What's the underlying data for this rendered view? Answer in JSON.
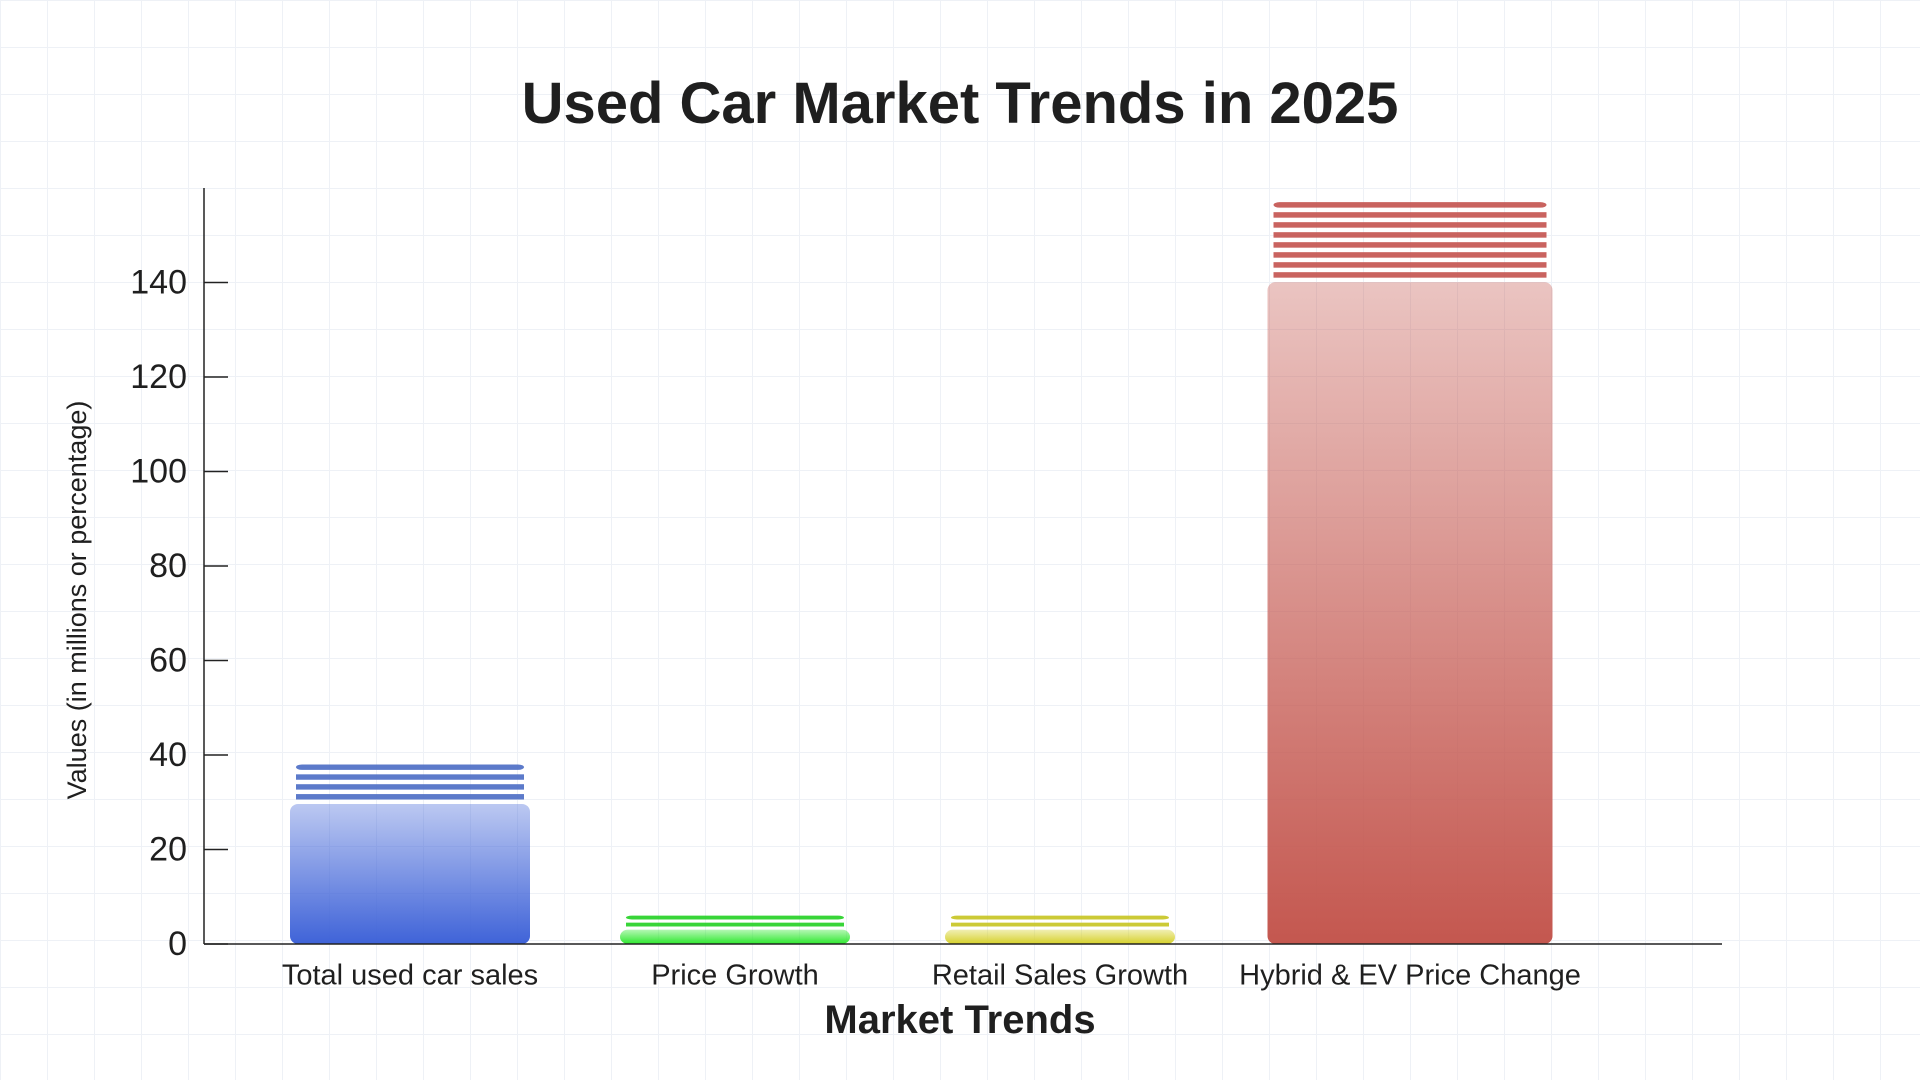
{
  "chart_data": {
    "type": "bar",
    "title": "Used Car Market Trends in 2025",
    "xlabel": "Market Trends",
    "ylabel": "Values (in millions or percentage)",
    "categories": [
      "Total used car sales",
      "Price Growth",
      "Retail Sales Growth",
      "Hybrid & EV Price Change"
    ],
    "values": [
      38,
      6,
      6,
      157
    ],
    "ylim": [
      0,
      160
    ],
    "yticks": [
      0,
      20,
      40,
      60,
      80,
      100,
      120,
      140
    ],
    "grid": true,
    "legend": "none",
    "colors": [
      "#3f63d8",
      "#2ee82e",
      "#d6d12a",
      "#c4574f"
    ]
  }
}
